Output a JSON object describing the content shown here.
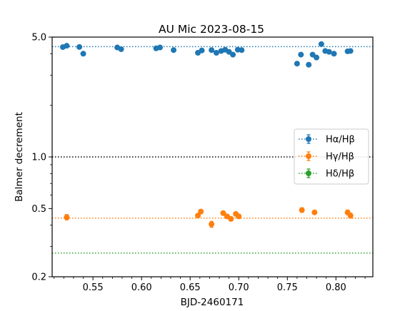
{
  "chart_data": {
    "type": "scatter",
    "title": "AU Mic 2023-08-15",
    "xlabel": "BJD-2460171",
    "ylabel": "Balmer decrement",
    "xlim": [
      0.508,
      0.838
    ],
    "ylim": [
      0.2,
      5.0
    ],
    "yscale": "log",
    "x_ticks": [
      0.55,
      0.6,
      0.65,
      0.7,
      0.75,
      0.8
    ],
    "x_tick_labels": [
      "0.55",
      "0.60",
      "0.65",
      "0.70",
      "0.75",
      "0.80"
    ],
    "y_ticks": [
      0.2,
      0.5,
      1.0,
      5.0
    ],
    "y_tick_labels": [
      "0.2",
      "0.5",
      "1.0",
      "5.0"
    ],
    "legend_position": "center-right",
    "reference_line": {
      "y": 1.0,
      "color": "#000000",
      "style": "dotted"
    },
    "series": [
      {
        "name": "Hα/Hβ",
        "color": "#1f77b4",
        "reference": 4.4,
        "x": [
          0.519,
          0.523,
          0.536,
          0.54,
          0.575,
          0.579,
          0.615,
          0.619,
          0.633,
          0.658,
          0.662,
          0.672,
          0.677,
          0.682,
          0.686,
          0.69,
          0.694,
          0.699,
          0.703,
          0.76,
          0.764,
          0.772,
          0.776,
          0.78,
          0.785,
          0.789,
          0.793,
          0.798,
          0.812,
          0.815
        ],
        "y": [
          4.37,
          4.45,
          4.38,
          4.0,
          4.35,
          4.25,
          4.3,
          4.35,
          4.2,
          4.05,
          4.18,
          4.2,
          4.05,
          4.15,
          4.22,
          4.1,
          3.95,
          4.22,
          4.2,
          3.5,
          3.95,
          3.45,
          3.95,
          3.8,
          4.55,
          4.15,
          4.1,
          4.0,
          4.13,
          4.15
        ],
        "yerr": [
          0.06,
          0.06,
          0.06,
          0.06,
          0.06,
          0.06,
          0.06,
          0.06,
          0.06,
          0.06,
          0.06,
          0.06,
          0.06,
          0.06,
          0.06,
          0.06,
          0.06,
          0.06,
          0.06,
          0.08,
          0.08,
          0.08,
          0.08,
          0.08,
          0.08,
          0.08,
          0.08,
          0.08,
          0.06,
          0.06
        ]
      },
      {
        "name": "Hγ/Hβ",
        "color": "#ff7f0e",
        "reference": 0.44,
        "x": [
          0.523,
          0.658,
          0.661,
          0.672,
          0.684,
          0.688,
          0.692,
          0.697,
          0.7,
          0.765,
          0.778,
          0.812,
          0.815
        ],
        "y": [
          0.445,
          0.455,
          0.48,
          0.405,
          0.47,
          0.45,
          0.435,
          0.465,
          0.45,
          0.49,
          0.475,
          0.475,
          0.455
        ],
        "yerr": [
          0.016,
          0.012,
          0.012,
          0.016,
          0.012,
          0.012,
          0.012,
          0.012,
          0.012,
          0.015,
          0.012,
          0.015,
          0.015
        ]
      },
      {
        "name": "Hδ/Hβ",
        "color": "#2ca02c",
        "reference": 0.275,
        "x": [],
        "y": [],
        "yerr": []
      }
    ]
  }
}
